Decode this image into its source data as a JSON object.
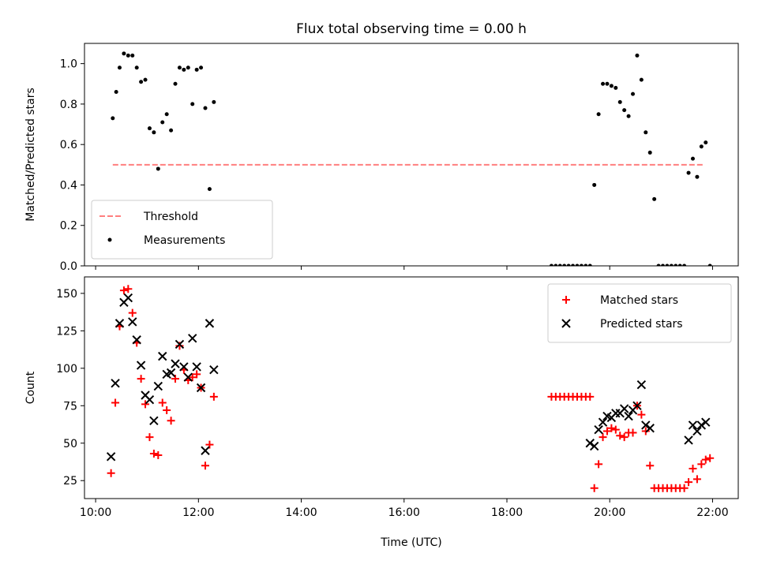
{
  "chart_data": [
    {
      "type": "scatter",
      "title": "Flux total observing time = 0.00 h",
      "xlabel": "",
      "ylabel": "Matched/Predicted stars",
      "xlim": [
        "09:47",
        "22:30"
      ],
      "ylim": [
        0,
        1.1
      ],
      "x_ticks": [
        "10:00",
        "12:00",
        "14:00",
        "16:00",
        "18:00",
        "20:00",
        "22:00"
      ],
      "show_x_tick_labels": false,
      "y_ticks": [
        0.0,
        0.2,
        0.4,
        0.6,
        0.8,
        1.0
      ],
      "y_tick_labels": [
        "0.0",
        "0.2",
        "0.4",
        "0.6",
        "0.8",
        "1.0"
      ],
      "grid": false,
      "legend_position": "lower-left",
      "threshold": {
        "name": "Threshold",
        "value": 0.5,
        "x_range": [
          "10:20",
          "21:50"
        ],
        "color": "#ff7f7f"
      },
      "series": [
        {
          "name": "Measurements",
          "marker": "dot",
          "color": "#000000",
          "points": [
            [
              "10:20",
              0.73
            ],
            [
              "10:24",
              0.86
            ],
            [
              "10:28",
              0.98
            ],
            [
              "10:33",
              1.05
            ],
            [
              "10:38",
              1.04
            ],
            [
              "10:43",
              1.04
            ],
            [
              "10:48",
              0.98
            ],
            [
              "10:53",
              0.91
            ],
            [
              "10:58",
              0.92
            ],
            [
              "11:03",
              0.68
            ],
            [
              "11:08",
              0.66
            ],
            [
              "11:13",
              0.48
            ],
            [
              "11:18",
              0.71
            ],
            [
              "11:23",
              0.75
            ],
            [
              "11:28",
              0.67
            ],
            [
              "11:33",
              0.9
            ],
            [
              "11:38",
              0.98
            ],
            [
              "11:43",
              0.97
            ],
            [
              "11:48",
              0.98
            ],
            [
              "11:53",
              0.8
            ],
            [
              "11:58",
              0.97
            ],
            [
              "12:03",
              0.98
            ],
            [
              "12:08",
              0.78
            ],
            [
              "12:13",
              0.38
            ],
            [
              "12:18",
              0.81
            ],
            [
              "18:52",
              0.0
            ],
            [
              "18:57",
              0.0
            ],
            [
              "19:02",
              0.0
            ],
            [
              "19:07",
              0.0
            ],
            [
              "19:12",
              0.0
            ],
            [
              "19:17",
              0.0
            ],
            [
              "19:22",
              0.0
            ],
            [
              "19:27",
              0.0
            ],
            [
              "19:32",
              0.0
            ],
            [
              "19:37",
              0.0
            ],
            [
              "19:42",
              0.4
            ],
            [
              "19:47",
              0.75
            ],
            [
              "19:52",
              0.9
            ],
            [
              "19:57",
              0.9
            ],
            [
              "20:02",
              0.89
            ],
            [
              "20:07",
              0.88
            ],
            [
              "20:12",
              0.81
            ],
            [
              "20:17",
              0.77
            ],
            [
              "20:22",
              0.74
            ],
            [
              "20:27",
              0.85
            ],
            [
              "20:32",
              1.04
            ],
            [
              "20:37",
              0.92
            ],
            [
              "20:42",
              0.66
            ],
            [
              "20:47",
              0.56
            ],
            [
              "20:52",
              0.33
            ],
            [
              "20:57",
              0.0
            ],
            [
              "21:02",
              0.0
            ],
            [
              "21:07",
              0.0
            ],
            [
              "21:12",
              0.0
            ],
            [
              "21:17",
              0.0
            ],
            [
              "21:22",
              0.0
            ],
            [
              "21:27",
              0.0
            ],
            [
              "21:32",
              0.46
            ],
            [
              "21:37",
              0.53
            ],
            [
              "21:42",
              0.44
            ],
            [
              "21:47",
              0.59
            ],
            [
              "21:52",
              0.61
            ],
            [
              "21:57",
              0.0
            ]
          ]
        }
      ]
    },
    {
      "type": "scatter",
      "title": "",
      "xlabel": "Time (UTC)",
      "ylabel": "Count",
      "xlim": [
        "09:47",
        "22:30"
      ],
      "ylim": [
        13,
        161
      ],
      "x_ticks": [
        "10:00",
        "12:00",
        "14:00",
        "16:00",
        "18:00",
        "20:00",
        "22:00"
      ],
      "show_x_tick_labels": true,
      "y_ticks": [
        25,
        50,
        75,
        100,
        125,
        150
      ],
      "y_tick_labels": [
        "25",
        "50",
        "75",
        "100",
        "125",
        "150"
      ],
      "grid": false,
      "legend_position": "upper-right",
      "series": [
        {
          "name": "Matched stars",
          "marker": "plus",
          "color": "#ff0000",
          "points": [
            [
              "10:18",
              30
            ],
            [
              "10:23",
              77
            ],
            [
              "10:28",
              128
            ],
            [
              "10:33",
              152
            ],
            [
              "10:38",
              153
            ],
            [
              "10:43",
              137
            ],
            [
              "10:48",
              117
            ],
            [
              "10:53",
              93
            ],
            [
              "10:58",
              76
            ],
            [
              "11:03",
              54
            ],
            [
              "11:08",
              43
            ],
            [
              "11:13",
              42
            ],
            [
              "11:18",
              77
            ],
            [
              "11:23",
              72
            ],
            [
              "11:28",
              65
            ],
            [
              "11:33",
              93
            ],
            [
              "11:38",
              115
            ],
            [
              "11:43",
              99
            ],
            [
              "11:48",
              92
            ],
            [
              "11:53",
              94
            ],
            [
              "11:58",
              96
            ],
            [
              "12:03",
              87
            ],
            [
              "12:08",
              35
            ],
            [
              "12:13",
              49
            ],
            [
              "12:18",
              81
            ],
            [
              "18:52",
              81
            ],
            [
              "18:57",
              81
            ],
            [
              "19:02",
              81
            ],
            [
              "19:07",
              81
            ],
            [
              "19:12",
              81
            ],
            [
              "19:17",
              81
            ],
            [
              "19:22",
              81
            ],
            [
              "19:27",
              81
            ],
            [
              "19:32",
              81
            ],
            [
              "19:37",
              81
            ],
            [
              "19:42",
              20
            ],
            [
              "19:47",
              36
            ],
            [
              "19:52",
              54
            ],
            [
              "19:57",
              58
            ],
            [
              "20:02",
              60
            ],
            [
              "20:07",
              59
            ],
            [
              "20:12",
              55
            ],
            [
              "20:17",
              54
            ],
            [
              "20:22",
              57
            ],
            [
              "20:27",
              57
            ],
            [
              "20:32",
              75
            ],
            [
              "20:37",
              69
            ],
            [
              "20:42",
              58
            ],
            [
              "20:47",
              35
            ],
            [
              "20:52",
              20
            ],
            [
              "20:57",
              20
            ],
            [
              "21:02",
              20
            ],
            [
              "21:07",
              20
            ],
            [
              "21:12",
              20
            ],
            [
              "21:17",
              20
            ],
            [
              "21:22",
              20
            ],
            [
              "21:27",
              20
            ],
            [
              "21:32",
              24
            ],
            [
              "21:37",
              33
            ],
            [
              "21:42",
              26
            ],
            [
              "21:47",
              36
            ],
            [
              "21:52",
              39
            ],
            [
              "21:57",
              40
            ]
          ]
        },
        {
          "name": "Predicted stars",
          "marker": "x",
          "color": "#000000",
          "points": [
            [
              "10:18",
              41
            ],
            [
              "10:23",
              90
            ],
            [
              "10:28",
              130
            ],
            [
              "10:33",
              144
            ],
            [
              "10:38",
              147
            ],
            [
              "10:43",
              131
            ],
            [
              "10:48",
              119
            ],
            [
              "10:53",
              102
            ],
            [
              "10:58",
              82
            ],
            [
              "11:03",
              79
            ],
            [
              "11:08",
              65
            ],
            [
              "11:13",
              88
            ],
            [
              "11:18",
              108
            ],
            [
              "11:23",
              96
            ],
            [
              "11:28",
              97
            ],
            [
              "11:33",
              103
            ],
            [
              "11:38",
              116
            ],
            [
              "11:43",
              101
            ],
            [
              "11:48",
              94
            ],
            [
              "11:53",
              120
            ],
            [
              "11:58",
              101
            ],
            [
              "12:03",
              87
            ],
            [
              "12:08",
              45
            ],
            [
              "12:13",
              130
            ],
            [
              "12:18",
              99
            ],
            [
              "19:37",
              50
            ],
            [
              "19:42",
              48
            ],
            [
              "19:47",
              59
            ],
            [
              "19:52",
              64
            ],
            [
              "19:57",
              68
            ],
            [
              "20:02",
              67
            ],
            [
              "20:07",
              70
            ],
            [
              "20:12",
              70
            ],
            [
              "20:17",
              73
            ],
            [
              "20:22",
              68
            ],
            [
              "20:27",
              72
            ],
            [
              "20:32",
              75
            ],
            [
              "20:37",
              89
            ],
            [
              "20:42",
              62
            ],
            [
              "20:47",
              60
            ],
            [
              "21:32",
              52
            ],
            [
              "21:37",
              62
            ],
            [
              "21:42",
              58
            ],
            [
              "21:47",
              62
            ],
            [
              "21:52",
              64
            ]
          ]
        }
      ]
    }
  ]
}
